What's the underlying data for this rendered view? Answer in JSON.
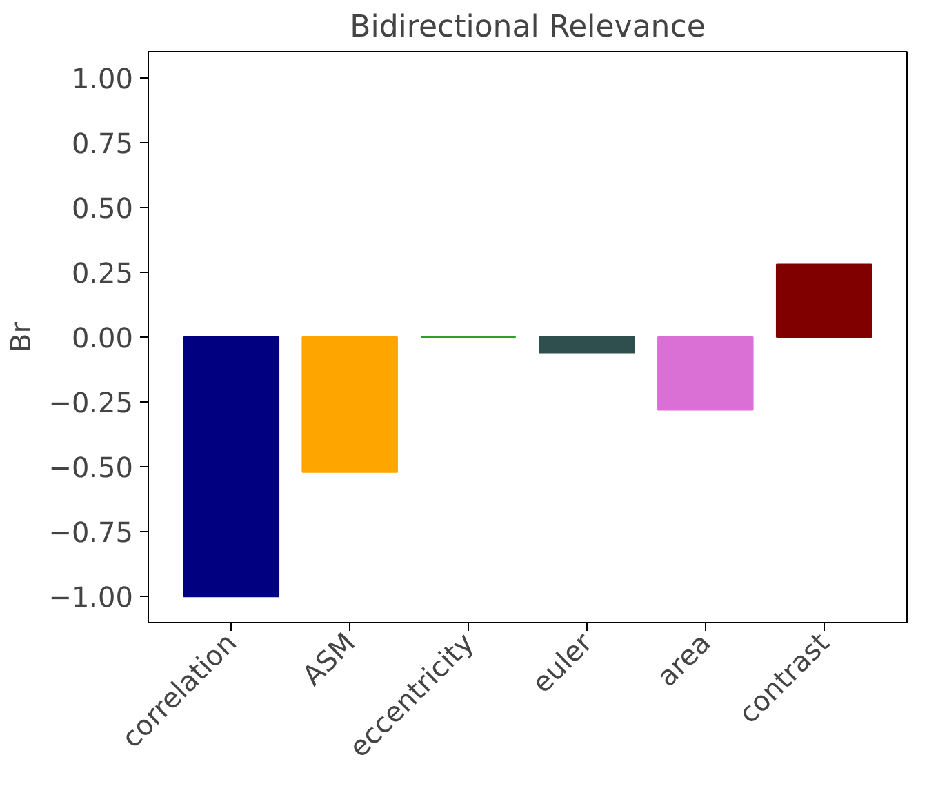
{
  "chart_data": {
    "type": "bar",
    "title": "Bidirectional Relevance",
    "ylabel": "Br",
    "categories": [
      "correlation",
      "ASM",
      "eccentricity",
      "euler",
      "area",
      "contrast"
    ],
    "values": [
      -1.0,
      -0.52,
      0.0,
      -0.06,
      -0.28,
      0.28
    ],
    "colors": [
      "#000080",
      "#ffa500",
      "#2ca02c",
      "#2f4f4f",
      "#da70d6",
      "#800000"
    ],
    "ylim": [
      -1.1,
      1.1
    ],
    "yticks": [
      {
        "value": -1.0,
        "label": "−1.00"
      },
      {
        "value": -0.75,
        "label": "−0.75"
      },
      {
        "value": -0.5,
        "label": "−0.50"
      },
      {
        "value": -0.25,
        "label": "−0.25"
      },
      {
        "value": 0.0,
        "label": "0.00"
      },
      {
        "value": 0.25,
        "label": "0.25"
      },
      {
        "value": 0.5,
        "label": "0.50"
      },
      {
        "value": 0.75,
        "label": "0.75"
      },
      {
        "value": 1.0,
        "label": "1.00"
      }
    ],
    "grid": false
  }
}
